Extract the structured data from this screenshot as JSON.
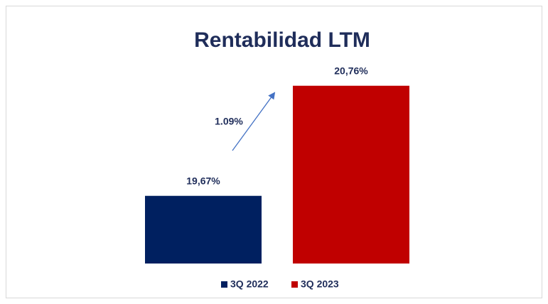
{
  "chart_data": {
    "type": "bar",
    "title": "Rentabilidad LTM",
    "categories": [
      null
    ],
    "series": [
      {
        "name": "3Q 2022",
        "color": "#002060",
        "values": [
          19.67
        ],
        "value_labels": [
          "19,67%"
        ]
      },
      {
        "name": "3Q 2023",
        "color": "#c00000",
        "values": [
          20.76
        ],
        "value_labels": [
          "20,76%"
        ]
      }
    ],
    "annotations": [
      "1.09%"
    ],
    "ylim": [
      19,
      21
    ],
    "legend": "bottom"
  }
}
